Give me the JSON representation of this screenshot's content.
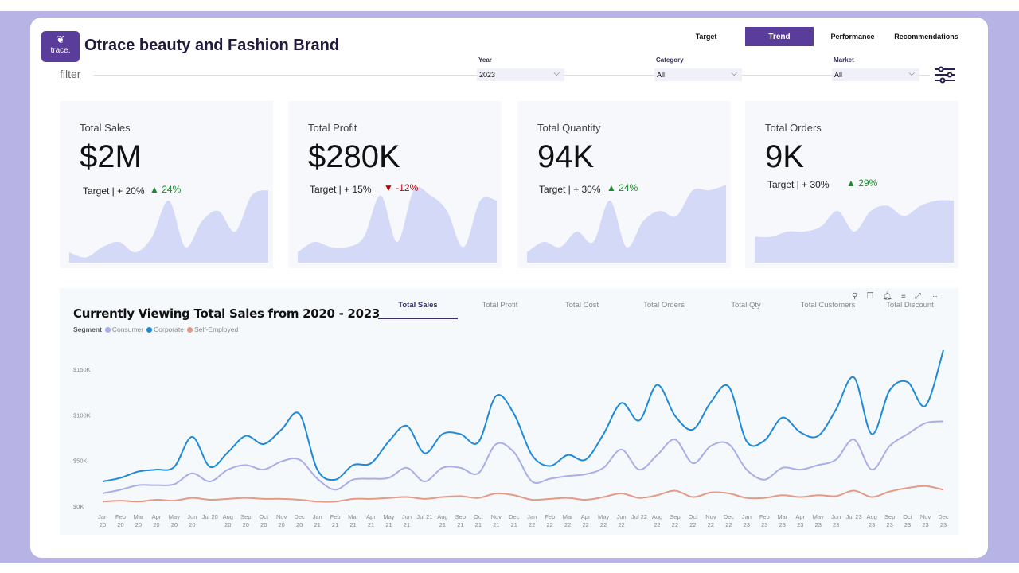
{
  "header": {
    "logo_text": "trace.",
    "title": "Otrace beauty and Fashion Brand"
  },
  "nav": [
    {
      "label": "Target",
      "active": false
    },
    {
      "label": "Trend",
      "active": true
    },
    {
      "label": "Performance",
      "active": false
    },
    {
      "label": "Recommendations",
      "active": false
    }
  ],
  "filter": {
    "label": "filter",
    "slicers": [
      {
        "label": "Year",
        "value": "2023"
      },
      {
        "label": "Category",
        "value": "All"
      },
      {
        "label": "Market",
        "value": "All"
      }
    ]
  },
  "kpis": [
    {
      "label": "Total Sales",
      "value": "$2M",
      "target": "Target | + 20%",
      "change": "24%",
      "direction": "up",
      "spark": [
        2,
        1,
        3,
        4,
        2,
        5,
        12,
        3,
        8,
        10,
        6,
        13,
        14
      ]
    },
    {
      "label": "Total Profit",
      "value": "$280K",
      "target": "Target | + 15%",
      "change": "-12%",
      "direction": "down",
      "spark": [
        2,
        4,
        3,
        3,
        5,
        13,
        4,
        14,
        13,
        10,
        3,
        12,
        12
      ]
    },
    {
      "label": "Total Quantity",
      "value": "94K",
      "target": "Target | + 30%",
      "change": "24%",
      "direction": "up",
      "spark": [
        2,
        4,
        3,
        6,
        4,
        12,
        3,
        8,
        10,
        9,
        14,
        14,
        15
      ]
    },
    {
      "label": "Total Orders",
      "value": "9K",
      "target": "Target | + 30%",
      "change": "29%",
      "direction": "up",
      "spark": [
        5,
        5,
        6,
        6,
        7,
        10,
        6,
        10,
        11,
        9,
        11,
        12,
        12
      ]
    }
  ],
  "colors": {
    "accent": "#5a3d9a",
    "up": "#1e8a2e",
    "down": "#c00000",
    "spark": "#d3d9f7"
  },
  "chart_panel": {
    "title": "Currently Viewing Total Sales from 2020 - 2023",
    "tabs": [
      "Total Sales",
      "Total Profit",
      "Total Cost",
      "Total Orders",
      "Total Qty",
      "Total Customers",
      "Total Discount"
    ],
    "active_tab": "Total Sales",
    "header_icons": [
      "pin-icon",
      "copy-icon",
      "bell-icon",
      "filter-icon",
      "expand-icon",
      "more-icon"
    ]
  },
  "chart_data": {
    "type": "line",
    "legend_title": "Segment",
    "legend_position": "top-left",
    "ylim": [
      0,
      150000
    ],
    "y_ticks": [
      "$0K",
      "$50K",
      "$100K",
      "$150K"
    ],
    "y_tick_values": [
      0,
      50,
      100,
      150
    ],
    "x_labels": [
      "Jan 20",
      "Feb 20",
      "Mar 20",
      "Apr 20",
      "May 20",
      "Jun 20",
      "Jul 20",
      "Aug 20",
      "Sep 20",
      "Oct 20",
      "Nov 20",
      "Dec 20",
      "Jan 21",
      "Feb 21",
      "Mar 21",
      "Apr 21",
      "May 21",
      "Jun 21",
      "Jul 21",
      "Aug 21",
      "Sep 21",
      "Oct 21",
      "Nov 21",
      "Dec 21",
      "Jan 22",
      "Feb 22",
      "Mar 22",
      "Apr 22",
      "May 22",
      "Jun 22",
      "Jul 22",
      "Aug 22",
      "Sep 22",
      "Oct 22",
      "Nov 22",
      "Dec 22",
      "Jan 23",
      "Feb 23",
      "Mar 23",
      "Apr 23",
      "May 23",
      "Jun 23",
      "Jul 23",
      "Aug 23",
      "Sep 23",
      "Oct 23",
      "Nov 23",
      "Dec 23"
    ],
    "series": [
      {
        "name": "Consumer",
        "color": "#a9aee6",
        "values": [
          14,
          18,
          23,
          23,
          24,
          36,
          27,
          40,
          45,
          40,
          49,
          51,
          30,
          18,
          29,
          30,
          31,
          42,
          27,
          42,
          42,
          36,
          68,
          59,
          27,
          30,
          33,
          35,
          42,
          62,
          40,
          56,
          73,
          47,
          66,
          68,
          40,
          29,
          42,
          40,
          45,
          51,
          73,
          40,
          66,
          79,
          91,
          93
        ]
      },
      {
        "name": "Corporate",
        "color": "#1f8ad8",
        "values": [
          27,
          31,
          38,
          40,
          43,
          76,
          43,
          59,
          77,
          68,
          84,
          101,
          40,
          29,
          45,
          47,
          71,
          88,
          58,
          79,
          79,
          70,
          121,
          101,
          56,
          44,
          56,
          51,
          79,
          113,
          94,
          133,
          99,
          84,
          114,
          131,
          71,
          72,
          97,
          81,
          77,
          106,
          141,
          79,
          127,
          136,
          110,
          171
        ]
      },
      {
        "name": "Self-Employed",
        "color": "#e39a87",
        "values": [
          5,
          6,
          5,
          7,
          6,
          9,
          7,
          8,
          9,
          8,
          8,
          7,
          5,
          5,
          8,
          8,
          9,
          10,
          8,
          10,
          11,
          9,
          14,
          12,
          7,
          8,
          9,
          7,
          10,
          14,
          9,
          12,
          17,
          10,
          15,
          14,
          9,
          9,
          12,
          10,
          12,
          11,
          17,
          10,
          16,
          20,
          22,
          18
        ]
      }
    ]
  }
}
